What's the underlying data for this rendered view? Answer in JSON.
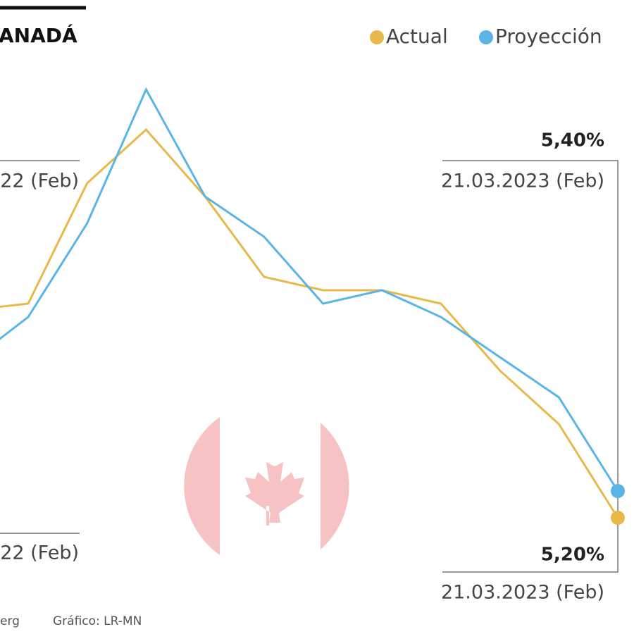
{
  "chart_data": {
    "type": "line",
    "title": "ANADÁ",
    "categories": [
      null,
      null,
      null,
      null,
      null,
      null,
      null,
      null,
      null,
      null,
      null,
      null
    ],
    "series": [
      {
        "name": "Actual",
        "color": "#e8b84b",
        "values": [
          6.75,
          6.8,
          7.7,
          8.1,
          7.6,
          7.0,
          6.9,
          6.9,
          6.8,
          6.3,
          5.9,
          5.2
        ]
      },
      {
        "name": "Proyección",
        "color": "#5ab4e5",
        "values": [
          6.36,
          6.7,
          7.4,
          8.4,
          7.6,
          7.3,
          6.8,
          6.9,
          6.7,
          6.4,
          6.1,
          5.4
        ]
      }
    ],
    "ylim": [
      4.5,
      9
    ],
    "annotations": {
      "left_top": "22 (Feb)",
      "left_bottom": "22 (Feb)",
      "right_top_value": "5,40%",
      "right_top_date": "21.03.2023 (Feb)",
      "right_bottom_value": "5,20%",
      "right_bottom_date": "21.03.2023 (Feb)"
    },
    "source": "erg",
    "credit": "Gráfico: LR-MN"
  }
}
